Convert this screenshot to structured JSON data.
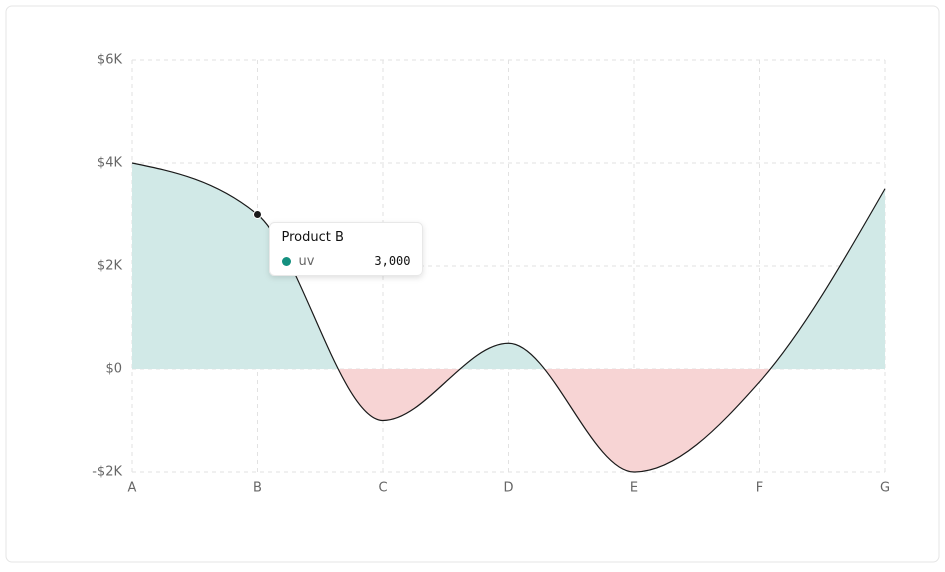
{
  "chart_data": {
    "type": "area",
    "categories": [
      "A",
      "B",
      "C",
      "D",
      "E",
      "F",
      "G"
    ],
    "series": [
      {
        "name": "uv",
        "color": "#1a1a1a",
        "values": [
          4000,
          3000,
          -1000,
          500,
          -2000,
          -250,
          3500
        ]
      }
    ],
    "fill_positive": "#d1e9e7",
    "fill_negative": "#f7d4d4",
    "ylim": [
      -2000,
      6000
    ],
    "yticks": [
      {
        "value": -2000,
        "label": "-$2K"
      },
      {
        "value": 0,
        "label": "$0"
      },
      {
        "value": 2000,
        "label": "$2K"
      },
      {
        "value": 4000,
        "label": "$4K"
      },
      {
        "value": 6000,
        "label": "$6K"
      }
    ],
    "grid": true,
    "tooltip": {
      "title": "Product B",
      "index": 1,
      "color": "#14907f",
      "value_label": "3,000"
    }
  }
}
